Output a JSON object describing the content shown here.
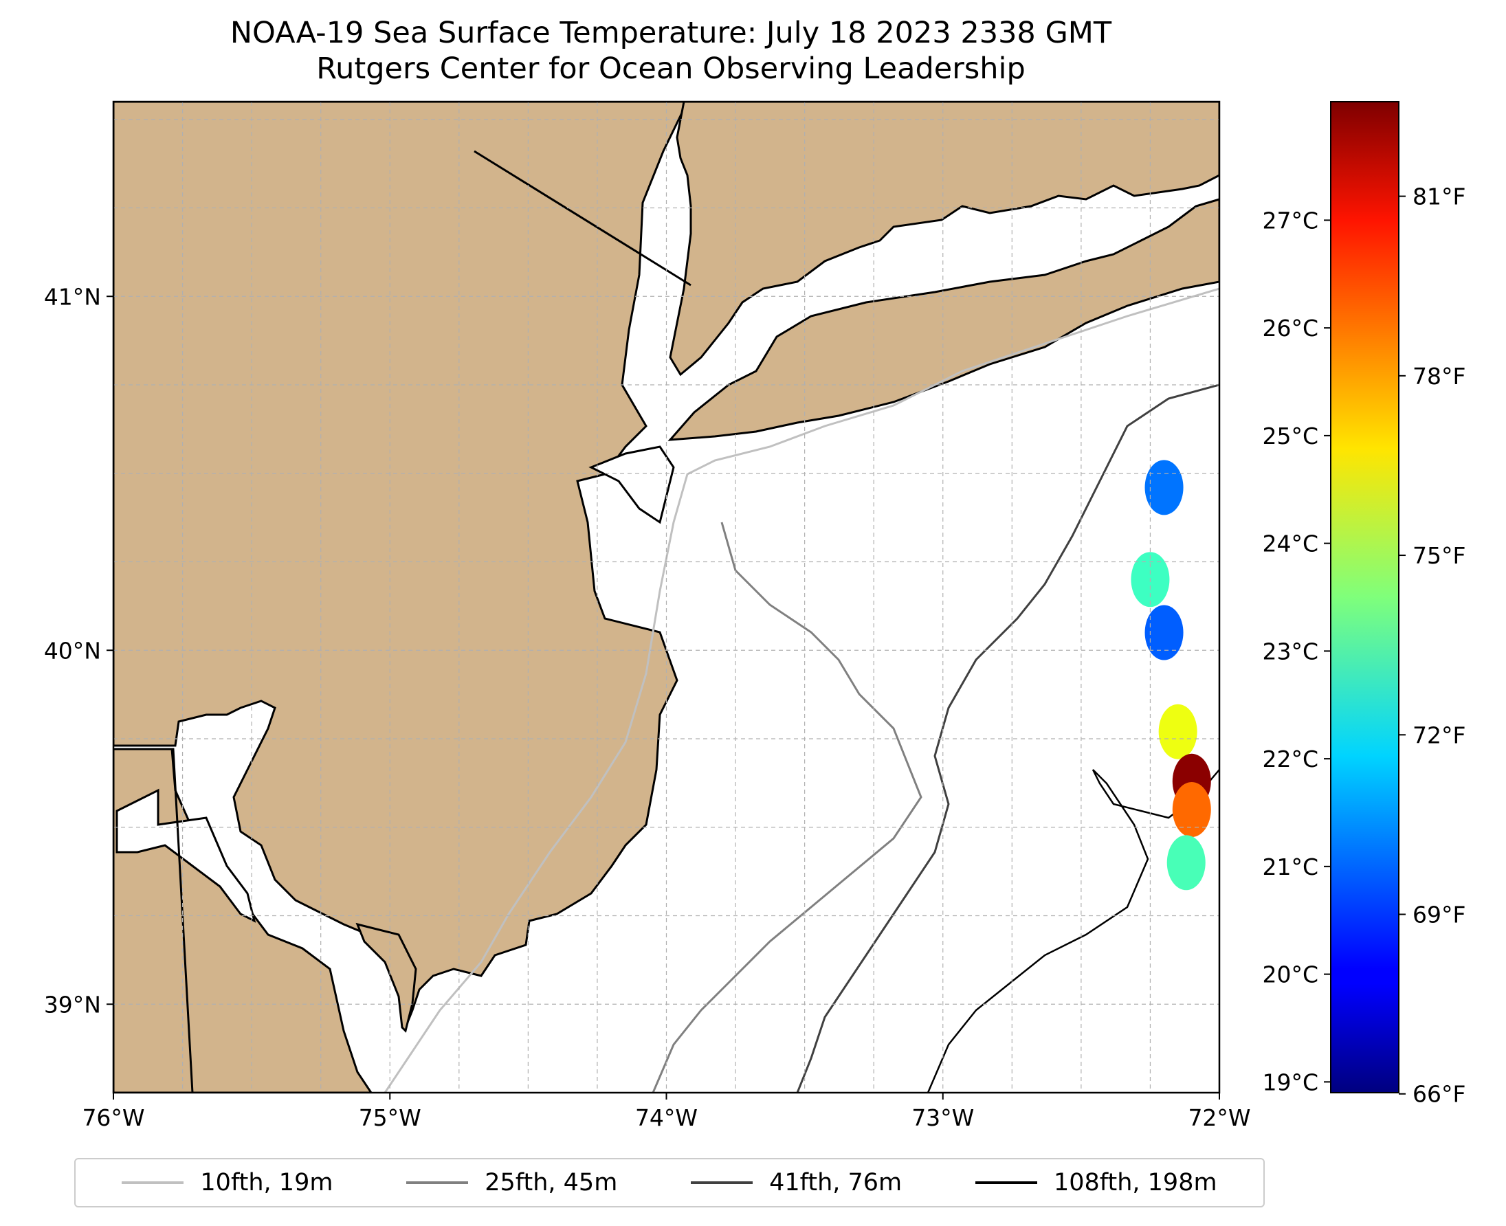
{
  "title": {
    "line1": "NOAA-19 Sea Surface Temperature: July 18 2023 2338 GMT",
    "line2": "Rutgers Center for Ocean Observing Leadership"
  },
  "colors": {
    "land": "#d2b48c",
    "ocean": "#ffffff",
    "grid": "#b0b0b0",
    "coast": "#000000"
  },
  "map": {
    "lon_range": [
      -76,
      -72
    ],
    "lat_range": [
      38.75,
      41.55
    ],
    "lon_ticks": [
      {
        "value": -76,
        "label": "76°W"
      },
      {
        "value": -75,
        "label": "75°W"
      },
      {
        "value": -74,
        "label": "74°W"
      },
      {
        "value": -73,
        "label": "73°W"
      },
      {
        "value": -72,
        "label": "72°W"
      }
    ],
    "lat_ticks": [
      {
        "value": 39,
        "label": "39°N"
      },
      {
        "value": 40,
        "label": "40°N"
      },
      {
        "value": 41,
        "label": "41°N"
      }
    ]
  },
  "colorbar": {
    "colormap": "jet",
    "celsius_range": [
      18.9,
      28.1
    ],
    "celsius_ticks": [
      {
        "value": 19,
        "label": "19°C"
      },
      {
        "value": 20,
        "label": "20°C"
      },
      {
        "value": 21,
        "label": "21°C"
      },
      {
        "value": 22,
        "label": "22°C"
      },
      {
        "value": 23,
        "label": "23°C"
      },
      {
        "value": 24,
        "label": "24°C"
      },
      {
        "value": 25,
        "label": "25°C"
      },
      {
        "value": 26,
        "label": "26°C"
      },
      {
        "value": 27,
        "label": "27°C"
      }
    ],
    "fahrenheit_ticks": [
      {
        "value": 66,
        "label": "66°F"
      },
      {
        "value": 69,
        "label": "69°F"
      },
      {
        "value": 72,
        "label": "72°F"
      },
      {
        "value": 75,
        "label": "75°F"
      },
      {
        "value": 78,
        "label": "78°F"
      },
      {
        "value": 81,
        "label": "81°F"
      }
    ]
  },
  "legend": [
    {
      "label": "10fth, 19m",
      "color": "#c0c0c0"
    },
    {
      "label": "25fth, 45m",
      "color": "#808080"
    },
    {
      "label": "41fth, 76m",
      "color": "#404040"
    },
    {
      "label": "108fth, 198m",
      "color": "#000000"
    }
  ],
  "sst_patches": [
    {
      "lon": -72.2,
      "lat": 40.46,
      "temp_c": 21.1
    },
    {
      "lon": -72.25,
      "lat": 40.2,
      "temp_c": 22.9
    },
    {
      "lon": -72.2,
      "lat": 40.05,
      "temp_c": 20.9
    },
    {
      "lon": -72.15,
      "lat": 39.77,
      "temp_c": 24.5
    },
    {
      "lon": -72.1,
      "lat": 39.63,
      "temp_c": 28.0
    },
    {
      "lon": -72.1,
      "lat": 39.55,
      "temp_c": 26.0
    },
    {
      "lon": -72.12,
      "lat": 39.4,
      "temp_c": 23.0
    }
  ]
}
